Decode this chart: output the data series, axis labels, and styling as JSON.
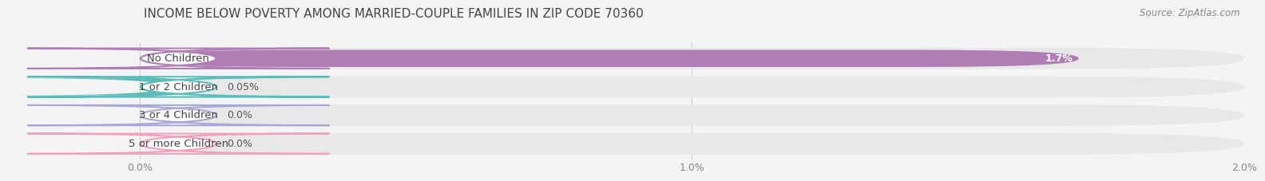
{
  "title": "INCOME BELOW POVERTY AMONG MARRIED-COUPLE FAMILIES IN ZIP CODE 70360",
  "source": "Source: ZipAtlas.com",
  "categories": [
    "No Children",
    "1 or 2 Children",
    "3 or 4 Children",
    "5 or more Children"
  ],
  "values": [
    1.7,
    0.05,
    0.0,
    0.0
  ],
  "bar_colors": [
    "#b07db5",
    "#5bbcb8",
    "#a8a8d8",
    "#f0a0b8"
  ],
  "value_labels": [
    "1.7%",
    "0.05%",
    "0.0%",
    "0.0%"
  ],
  "value_inside": [
    true,
    false,
    false,
    false
  ],
  "xlim": [
    0,
    2.0
  ],
  "xticks": [
    0.0,
    1.0,
    2.0
  ],
  "xticklabels": [
    "0.0%",
    "1.0%",
    "2.0%"
  ],
  "bg_color": "#f4f4f4",
  "bar_bg_color": "#e8e8e8",
  "title_fontsize": 11,
  "label_fontsize": 9.5,
  "value_fontsize": 9,
  "source_fontsize": 8.5
}
